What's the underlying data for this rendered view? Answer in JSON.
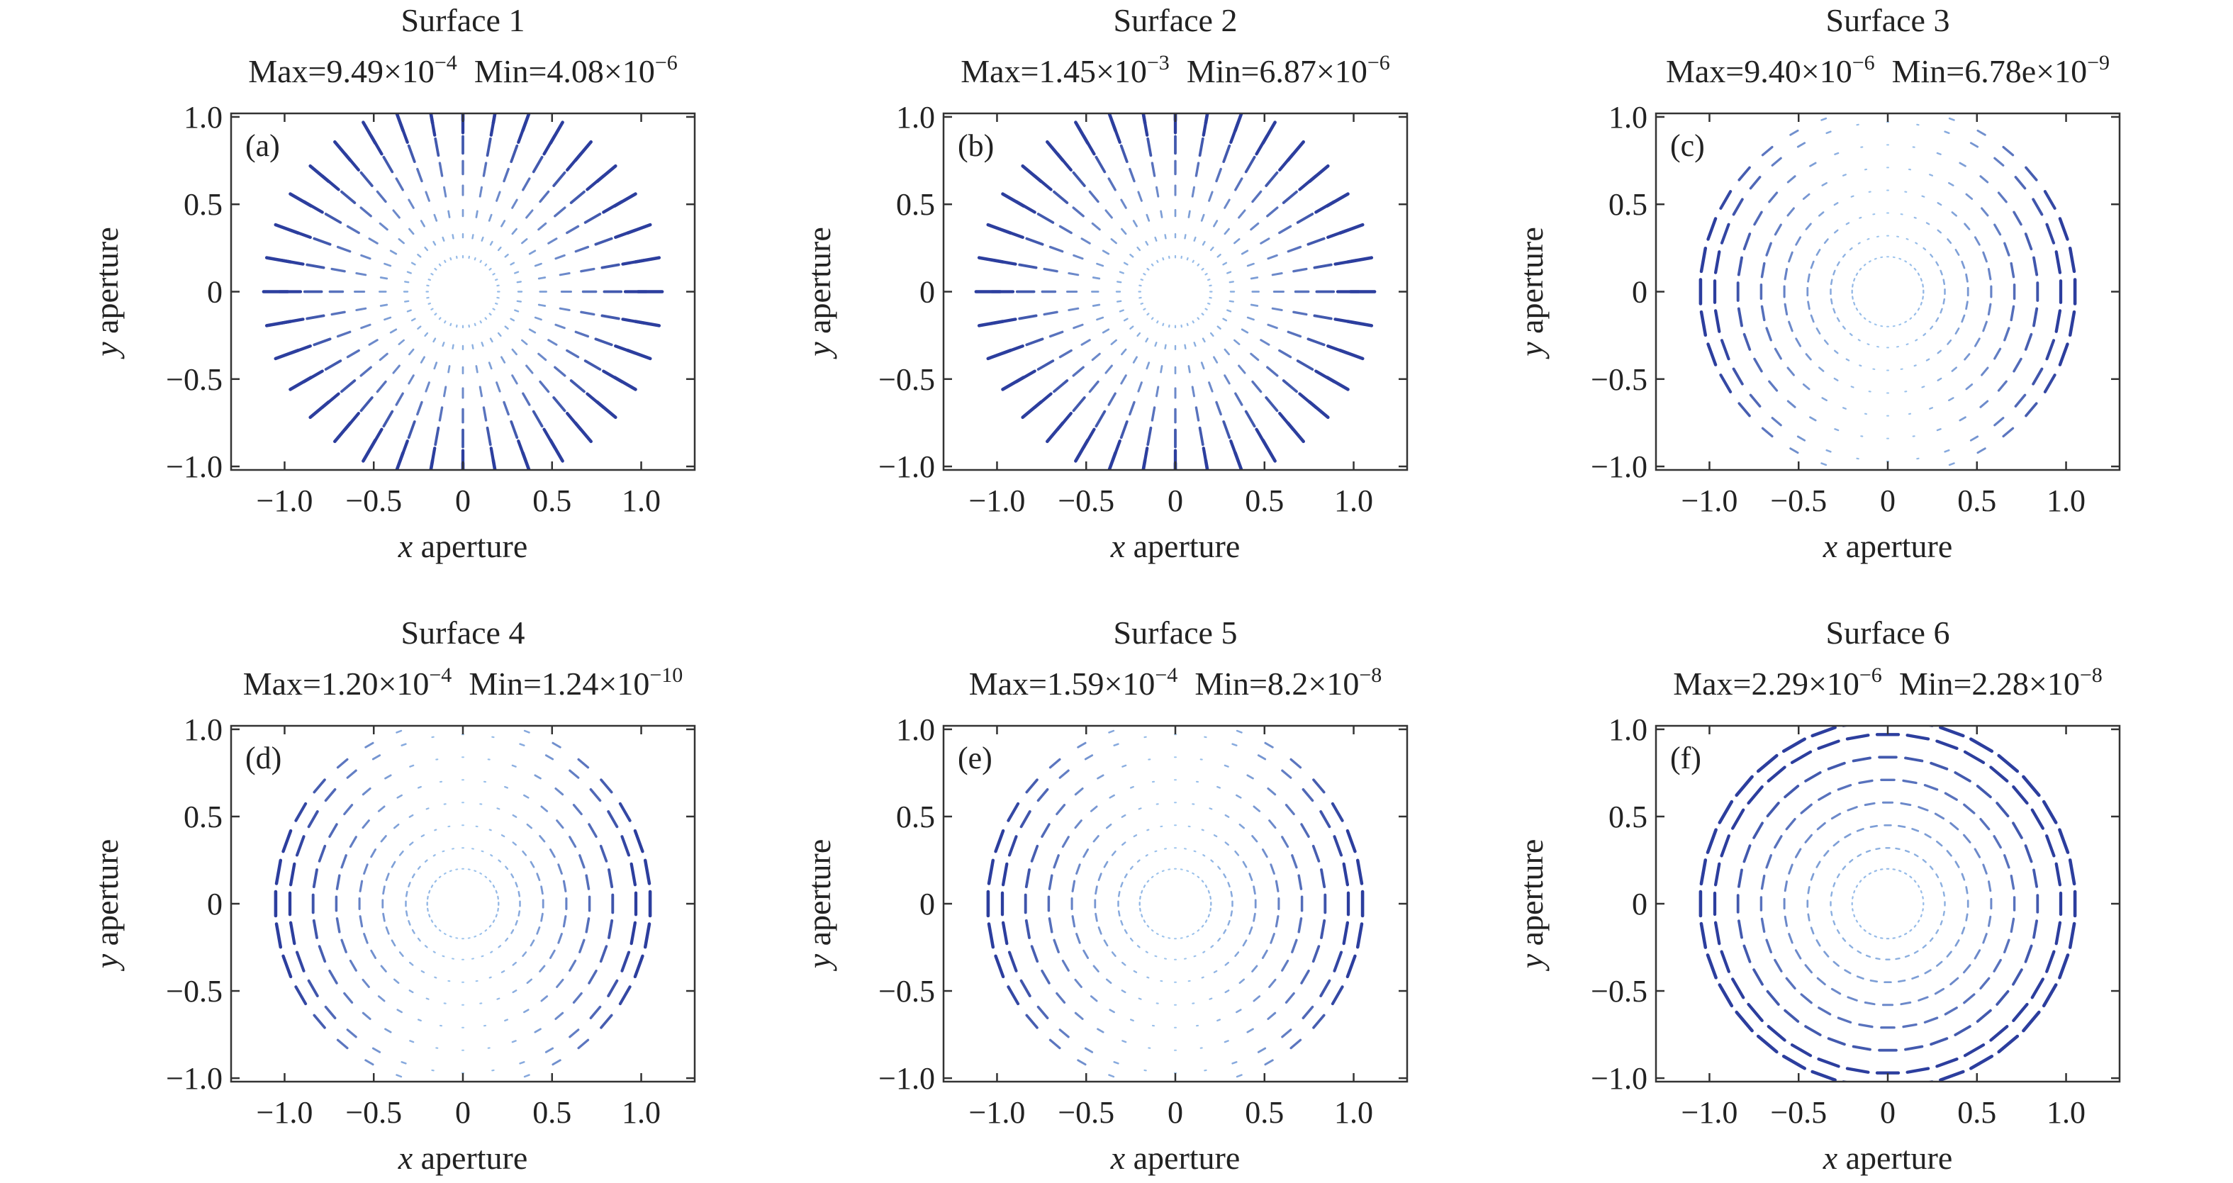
{
  "chart_data": [
    {
      "type": "vector-field",
      "panel_label": "(a)",
      "title": "Surface 1",
      "stats": {
        "max_mantissa": "Max=9.49×10",
        "max_exp": "−4",
        "min_mantissa": "Min=4.08×10",
        "min_exp": "−6"
      },
      "xlabel_var": "x",
      "xlabel_rest": " aperture",
      "ylabel_var": "y",
      "ylabel_rest": " aperture",
      "xlim": [
        -1.3,
        1.3
      ],
      "ylim": [
        -1.02,
        1.02
      ],
      "xticks": [
        -1.0,
        -0.5,
        0,
        0.5,
        1.0
      ],
      "xtick_labels": [
        "−1.0",
        "−0.5",
        "0",
        "0.5",
        "1.0"
      ],
      "yticks": [
        1.0,
        0.5,
        0,
        -0.5,
        -1.0
      ],
      "ytick_labels": [
        "1.0",
        "0.5",
        "0",
        "−0.5",
        "−1.0"
      ],
      "pattern": "radial",
      "rings": [
        0.2,
        0.32,
        0.45,
        0.58,
        0.71,
        0.84,
        0.97,
        1.05
      ],
      "spokes": 36,
      "color_strong": "#2c3e9e",
      "color_weak": "#9fc6ee"
    },
    {
      "type": "vector-field",
      "panel_label": "(b)",
      "title": "Surface 2",
      "stats": {
        "max_mantissa": "Max=1.45×10",
        "max_exp": "−3",
        "min_mantissa": "Min=6.87×10",
        "min_exp": "−6"
      },
      "xlabel_var": "x",
      "xlabel_rest": " aperture",
      "ylabel_var": "y",
      "ylabel_rest": " aperture",
      "xlim": [
        -1.3,
        1.3
      ],
      "ylim": [
        -1.02,
        1.02
      ],
      "xticks": [
        -1.0,
        -0.5,
        0,
        0.5,
        1.0
      ],
      "xtick_labels": [
        "−1.0",
        "−0.5",
        "0",
        "0.5",
        "1.0"
      ],
      "yticks": [
        1.0,
        0.5,
        0,
        -0.5,
        -1.0
      ],
      "ytick_labels": [
        "1.0",
        "0.5",
        "0",
        "−0.5",
        "−1.0"
      ],
      "pattern": "radial",
      "rings": [
        0.2,
        0.32,
        0.45,
        0.58,
        0.71,
        0.84,
        0.97,
        1.05
      ],
      "spokes": 36,
      "color_strong": "#2c3e9e",
      "color_weak": "#9fc6ee"
    },
    {
      "type": "vector-field",
      "panel_label": "(c)",
      "title": "Surface 3",
      "stats": {
        "max_mantissa": "Max=9.40×10",
        "max_exp": "−6",
        "min_mantissa": "Min=6.78e×10",
        "min_exp": "−9"
      },
      "xlabel_var": "x",
      "xlabel_rest": " aperture",
      "ylabel_var": "y",
      "ylabel_rest": " aperture",
      "xlim": [
        -1.3,
        1.3
      ],
      "ylim": [
        -1.02,
        1.02
      ],
      "xticks": [
        -1.0,
        -0.5,
        0,
        0.5,
        1.0
      ],
      "xtick_labels": [
        "−1.0",
        "−0.5",
        "0",
        "0.5",
        "1.0"
      ],
      "yticks": [
        1.0,
        0.5,
        0,
        -0.5,
        -1.0
      ],
      "ytick_labels": [
        "1.0",
        "0.5",
        "0",
        "−0.5",
        "−1.0"
      ],
      "pattern": "tangential-sides",
      "rings": [
        0.2,
        0.32,
        0.45,
        0.58,
        0.71,
        0.84,
        0.97,
        1.05
      ],
      "spokes": 36,
      "color_strong": "#2c3e9e",
      "color_weak": "#9fc6ee"
    },
    {
      "type": "vector-field",
      "panel_label": "(d)",
      "title": "Surface 4",
      "stats": {
        "max_mantissa": "Max=1.20×10",
        "max_exp": "−4",
        "min_mantissa": "Min=1.24×10",
        "min_exp": "−10"
      },
      "xlabel_var": "x",
      "xlabel_rest": " aperture",
      "ylabel_var": "y",
      "ylabel_rest": " aperture",
      "xlim": [
        -1.3,
        1.3
      ],
      "ylim": [
        -1.02,
        1.02
      ],
      "xticks": [
        -1.0,
        -0.5,
        0,
        0.5,
        1.0
      ],
      "xtick_labels": [
        "−1.0",
        "−0.5",
        "0",
        "0.5",
        "1.0"
      ],
      "yticks": [
        1.0,
        0.5,
        0,
        -0.5,
        -1.0
      ],
      "ytick_labels": [
        "1.0",
        "0.5",
        "0",
        "−0.5",
        "−1.0"
      ],
      "pattern": "tangential-sides",
      "rings": [
        0.2,
        0.32,
        0.45,
        0.58,
        0.71,
        0.84,
        0.97,
        1.05
      ],
      "spokes": 36,
      "color_strong": "#2c3e9e",
      "color_weak": "#9fc6ee"
    },
    {
      "type": "vector-field",
      "panel_label": "(e)",
      "title": "Surface 5",
      "stats": {
        "max_mantissa": "Max=1.59×10",
        "max_exp": "−4",
        "min_mantissa": "Min=8.2×10",
        "min_exp": "−8"
      },
      "xlabel_var": "x",
      "xlabel_rest": " aperture",
      "ylabel_var": "y",
      "ylabel_rest": " aperture",
      "xlim": [
        -1.3,
        1.3
      ],
      "ylim": [
        -1.02,
        1.02
      ],
      "xticks": [
        -1.0,
        -0.5,
        0,
        0.5,
        1.0
      ],
      "xtick_labels": [
        "−1.0",
        "−0.5",
        "0",
        "0.5",
        "1.0"
      ],
      "yticks": [
        1.0,
        0.5,
        0,
        -0.5,
        -1.0
      ],
      "ytick_labels": [
        "1.0",
        "0.5",
        "0",
        "−0.5",
        "−1.0"
      ],
      "pattern": "tangential-sides",
      "rings": [
        0.2,
        0.32,
        0.45,
        0.58,
        0.71,
        0.84,
        0.97,
        1.05
      ],
      "spokes": 36,
      "color_strong": "#2c3e9e",
      "color_weak": "#9fc6ee"
    },
    {
      "type": "vector-field",
      "panel_label": "(f)",
      "title": "Surface 6",
      "stats": {
        "max_mantissa": "Max=2.29×10",
        "max_exp": "−6",
        "min_mantissa": "Min=2.28×10",
        "min_exp": "−8"
      },
      "xlabel_var": "x",
      "xlabel_rest": " aperture",
      "ylabel_var": "y",
      "ylabel_rest": " aperture",
      "xlim": [
        -1.3,
        1.3
      ],
      "ylim": [
        -1.02,
        1.02
      ],
      "xticks": [
        -1.0,
        -0.5,
        0,
        0.5,
        1.0
      ],
      "xtick_labels": [
        "−1.0",
        "−0.5",
        "0",
        "0.5",
        "1.0"
      ],
      "yticks": [
        1.0,
        0.5,
        0,
        -0.5,
        -1.0
      ],
      "ytick_labels": [
        "1.0",
        "0.5",
        "0",
        "−0.5",
        "−1.0"
      ],
      "pattern": "tangential",
      "rings": [
        0.2,
        0.32,
        0.45,
        0.58,
        0.71,
        0.84,
        0.97,
        1.05
      ],
      "spokes": 36,
      "color_strong": "#2c3e9e",
      "color_weak": "#9fc6ee"
    }
  ]
}
